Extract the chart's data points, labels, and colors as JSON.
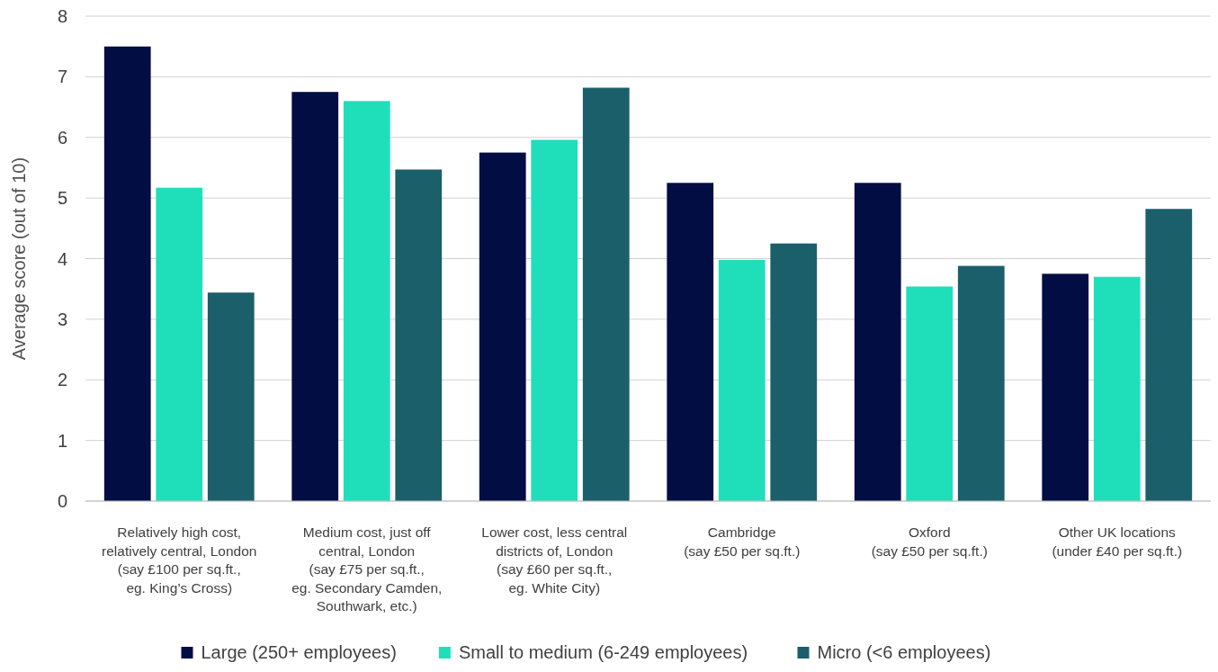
{
  "chart_data": {
    "type": "bar",
    "ylabel": "Average score (out of 10)",
    "categories": [
      "Relatively high cost,\nrelatively central, London\n(say £100 per sq.ft.,\neg. King’s Cross)",
      "Medium cost, just off\ncentral, London\n(say £75 per sq.ft.,\neg. Secondary Camden,\nSouthwark, etc.)",
      "Lower cost, less central\ndistricts of, London\n(say £60 per sq.ft.,\neg. White City)",
      "Cambridge\n(say £50 per sq.ft.)",
      "Oxford\n(say £50 per sq.ft.)",
      "Other UK locations\n(under £40 per sq.ft.)"
    ],
    "series": [
      {
        "name": "Large (250+ employees)",
        "color": "#020d43",
        "values": [
          7.5,
          6.75,
          5.75,
          5.25,
          5.25,
          3.75
        ]
      },
      {
        "name": "Small to medium (6-249 employees)",
        "color": "#1fdfbb",
        "values": [
          5.17,
          6.6,
          5.96,
          3.98,
          3.54,
          3.7
        ]
      },
      {
        "name": "Micro (<6 employees)",
        "color": "#1b5f6b",
        "values": [
          3.44,
          5.47,
          6.82,
          4.25,
          3.88,
          4.82
        ]
      }
    ],
    "ylim": [
      0,
      8
    ],
    "yticks": [
      0,
      1,
      2,
      3,
      4,
      5,
      6,
      7,
      8
    ],
    "grid": "y",
    "legend": "bottom"
  }
}
